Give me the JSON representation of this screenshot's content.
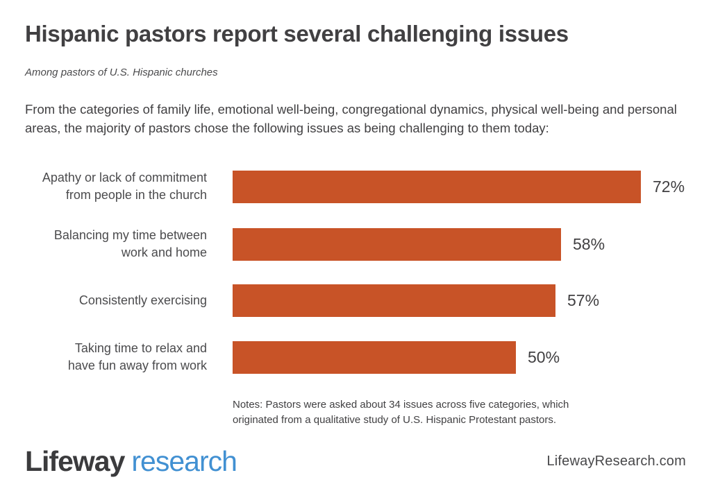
{
  "page": {
    "title": "Hispanic pastors report several challenging issues",
    "subtitle": "Among pastors of U.S. Hispanic churches",
    "description": "From the categories of family life, emotional well-being, congregational dynamics, physical well-being and personal areas, the majority of pastors chose the following issues as being challenging to them today:",
    "notes": "Notes: Pastors were asked about 34 issues across five categories, which originated from a qualitative study of U.S. Hispanic Protestant pastors."
  },
  "chart_data": {
    "type": "bar",
    "orientation": "horizontal",
    "title": "Hispanic pastors report several challenging issues",
    "subtitle": "Among pastors of U.S. Hispanic churches",
    "categories": [
      [
        "Apathy or lack of commitment",
        "from people in the church"
      ],
      [
        "Balancing my time between",
        "work and home"
      ],
      [
        "Consistently exercising"
      ],
      [
        "Taking time to relax and",
        "have fun away from work"
      ]
    ],
    "values": [
      72,
      58,
      57,
      50
    ],
    "value_suffix": "%",
    "xlim": [
      0,
      100
    ],
    "grid": false,
    "legend": false,
    "bar_color": "#C85327",
    "notes": "Notes: Pastors were asked about 34 issues across five categories, which originated from a qualitative study of U.S. Hispanic Protestant pastors."
  },
  "footer": {
    "logo_primary": "Lifeway",
    "logo_secondary": "research",
    "website": "LifewayResearch.com"
  },
  "colors": {
    "bar": "#C85327",
    "text_dark": "#414042",
    "logo_dark": "#3B3B3D",
    "logo_blue": "#4190D2",
    "background": "#FFFFFF"
  }
}
